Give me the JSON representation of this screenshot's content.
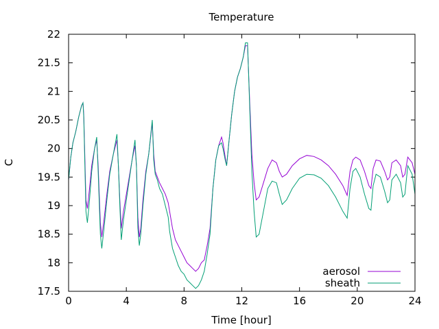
{
  "chart_data": {
    "type": "line",
    "title": "Temperature",
    "xlabel": "Time [hour]",
    "ylabel": "C",
    "xlim": [
      0,
      24
    ],
    "ylim": [
      17.5,
      22
    ],
    "xticks": [
      0,
      4,
      8,
      12,
      16,
      20,
      24
    ],
    "yticks": [
      17.5,
      18,
      18.5,
      19,
      19.5,
      20,
      20.5,
      21,
      21.5,
      22
    ],
    "grid": false,
    "legend_position": "bottom-right",
    "series": [
      {
        "name": "aerosol",
        "color": "#9400d3",
        "points": [
          [
            0.0,
            19.45
          ],
          [
            0.15,
            19.85
          ],
          [
            0.3,
            20.1
          ],
          [
            0.5,
            20.3
          ],
          [
            0.7,
            20.55
          ],
          [
            0.9,
            20.75
          ],
          [
            1.0,
            20.8
          ],
          [
            1.05,
            20.6
          ],
          [
            1.2,
            19.1
          ],
          [
            1.3,
            18.95
          ],
          [
            1.45,
            19.3
          ],
          [
            1.6,
            19.7
          ],
          [
            1.8,
            20.0
          ],
          [
            1.95,
            20.15
          ],
          [
            2.05,
            19.7
          ],
          [
            2.2,
            18.7
          ],
          [
            2.3,
            18.45
          ],
          [
            2.45,
            18.75
          ],
          [
            2.65,
            19.2
          ],
          [
            2.85,
            19.6
          ],
          [
            3.1,
            19.9
          ],
          [
            3.35,
            20.15
          ],
          [
            3.45,
            19.7
          ],
          [
            3.55,
            19.1
          ],
          [
            3.65,
            18.6
          ],
          [
            3.8,
            18.9
          ],
          [
            4.0,
            19.2
          ],
          [
            4.2,
            19.5
          ],
          [
            4.4,
            19.8
          ],
          [
            4.6,
            20.05
          ],
          [
            4.7,
            19.7
          ],
          [
            4.8,
            18.8
          ],
          [
            4.9,
            18.45
          ],
          [
            5.0,
            18.6
          ],
          [
            5.15,
            19.1
          ],
          [
            5.35,
            19.6
          ],
          [
            5.55,
            19.9
          ],
          [
            5.8,
            20.45
          ],
          [
            5.9,
            19.9
          ],
          [
            6.0,
            19.6
          ],
          [
            6.15,
            19.5
          ],
          [
            6.3,
            19.4
          ],
          [
            6.5,
            19.3
          ],
          [
            6.7,
            19.2
          ],
          [
            6.9,
            19.05
          ],
          [
            7.0,
            18.9
          ],
          [
            7.2,
            18.6
          ],
          [
            7.4,
            18.4
          ],
          [
            7.6,
            18.3
          ],
          [
            7.8,
            18.2
          ],
          [
            8.0,
            18.1
          ],
          [
            8.2,
            18.0
          ],
          [
            8.4,
            17.95
          ],
          [
            8.6,
            17.9
          ],
          [
            8.8,
            17.85
          ],
          [
            9.0,
            17.9
          ],
          [
            9.2,
            18.0
          ],
          [
            9.4,
            18.05
          ],
          [
            9.6,
            18.3
          ],
          [
            9.8,
            18.6
          ],
          [
            10.0,
            19.3
          ],
          [
            10.2,
            19.8
          ],
          [
            10.4,
            20.05
          ],
          [
            10.6,
            20.2
          ],
          [
            10.7,
            20.1
          ],
          [
            10.85,
            19.85
          ],
          [
            10.95,
            19.7
          ],
          [
            11.1,
            20.1
          ],
          [
            11.3,
            20.6
          ],
          [
            11.5,
            21.0
          ],
          [
            11.7,
            21.25
          ],
          [
            11.9,
            21.4
          ],
          [
            12.1,
            21.6
          ],
          [
            12.25,
            21.8
          ],
          [
            12.4,
            21.8
          ],
          [
            12.55,
            20.8
          ],
          [
            12.7,
            19.9
          ],
          [
            12.85,
            19.4
          ],
          [
            13.0,
            19.1
          ],
          [
            13.2,
            19.15
          ],
          [
            13.5,
            19.4
          ],
          [
            13.8,
            19.65
          ],
          [
            14.1,
            19.8
          ],
          [
            14.4,
            19.75
          ],
          [
            14.6,
            19.6
          ],
          [
            14.8,
            19.5
          ],
          [
            15.1,
            19.55
          ],
          [
            15.5,
            19.7
          ],
          [
            16.0,
            19.82
          ],
          [
            16.5,
            19.88
          ],
          [
            17.0,
            19.86
          ],
          [
            17.5,
            19.8
          ],
          [
            18.0,
            19.7
          ],
          [
            18.5,
            19.55
          ],
          [
            19.0,
            19.35
          ],
          [
            19.3,
            19.18
          ],
          [
            19.5,
            19.6
          ],
          [
            19.7,
            19.8
          ],
          [
            19.9,
            19.85
          ],
          [
            20.2,
            19.8
          ],
          [
            20.5,
            19.6
          ],
          [
            20.8,
            19.35
          ],
          [
            20.95,
            19.3
          ],
          [
            21.1,
            19.65
          ],
          [
            21.3,
            19.8
          ],
          [
            21.6,
            19.78
          ],
          [
            21.9,
            19.6
          ],
          [
            22.1,
            19.45
          ],
          [
            22.25,
            19.5
          ],
          [
            22.4,
            19.75
          ],
          [
            22.7,
            19.8
          ],
          [
            23.0,
            19.7
          ],
          [
            23.15,
            19.5
          ],
          [
            23.3,
            19.55
          ],
          [
            23.5,
            19.85
          ],
          [
            23.8,
            19.75
          ],
          [
            24.0,
            19.55
          ]
        ]
      },
      {
        "name": "sheath",
        "color": "#009e73",
        "points": [
          [
            0.0,
            19.45
          ],
          [
            0.15,
            19.85
          ],
          [
            0.3,
            20.1
          ],
          [
            0.5,
            20.3
          ],
          [
            0.7,
            20.55
          ],
          [
            0.9,
            20.75
          ],
          [
            1.0,
            20.8
          ],
          [
            1.05,
            20.55
          ],
          [
            1.2,
            18.9
          ],
          [
            1.3,
            18.7
          ],
          [
            1.45,
            19.1
          ],
          [
            1.6,
            19.6
          ],
          [
            1.8,
            20.0
          ],
          [
            1.95,
            20.2
          ],
          [
            2.05,
            19.6
          ],
          [
            2.2,
            18.5
          ],
          [
            2.3,
            18.25
          ],
          [
            2.45,
            18.6
          ],
          [
            2.65,
            19.1
          ],
          [
            2.85,
            19.55
          ],
          [
            3.1,
            19.9
          ],
          [
            3.35,
            20.25
          ],
          [
            3.45,
            19.7
          ],
          [
            3.55,
            19.0
          ],
          [
            3.65,
            18.4
          ],
          [
            3.8,
            18.75
          ],
          [
            4.0,
            19.1
          ],
          [
            4.2,
            19.45
          ],
          [
            4.4,
            19.8
          ],
          [
            4.6,
            20.15
          ],
          [
            4.7,
            19.7
          ],
          [
            4.8,
            18.6
          ],
          [
            4.9,
            18.3
          ],
          [
            5.0,
            18.5
          ],
          [
            5.15,
            19.0
          ],
          [
            5.35,
            19.55
          ],
          [
            5.55,
            19.9
          ],
          [
            5.8,
            20.5
          ],
          [
            5.9,
            19.8
          ],
          [
            6.0,
            19.55
          ],
          [
            6.15,
            19.45
          ],
          [
            6.3,
            19.3
          ],
          [
            6.5,
            19.2
          ],
          [
            6.7,
            19.0
          ],
          [
            6.9,
            18.8
          ],
          [
            7.0,
            18.55
          ],
          [
            7.2,
            18.25
          ],
          [
            7.4,
            18.1
          ],
          [
            7.6,
            17.95
          ],
          [
            7.8,
            17.85
          ],
          [
            8.0,
            17.8
          ],
          [
            8.2,
            17.7
          ],
          [
            8.4,
            17.65
          ],
          [
            8.6,
            17.6
          ],
          [
            8.8,
            17.55
          ],
          [
            9.0,
            17.6
          ],
          [
            9.2,
            17.7
          ],
          [
            9.4,
            17.85
          ],
          [
            9.6,
            18.15
          ],
          [
            9.8,
            18.5
          ],
          [
            10.0,
            19.3
          ],
          [
            10.2,
            19.8
          ],
          [
            10.4,
            20.05
          ],
          [
            10.6,
            20.1
          ],
          [
            10.7,
            20.0
          ],
          [
            10.85,
            19.8
          ],
          [
            10.95,
            19.7
          ],
          [
            11.1,
            20.1
          ],
          [
            11.3,
            20.6
          ],
          [
            11.5,
            21.0
          ],
          [
            11.7,
            21.25
          ],
          [
            11.9,
            21.4
          ],
          [
            12.1,
            21.6
          ],
          [
            12.25,
            21.85
          ],
          [
            12.4,
            21.85
          ],
          [
            12.55,
            20.7
          ],
          [
            12.7,
            19.6
          ],
          [
            12.85,
            18.9
          ],
          [
            13.0,
            18.45
          ],
          [
            13.2,
            18.5
          ],
          [
            13.5,
            18.9
          ],
          [
            13.8,
            19.3
          ],
          [
            14.1,
            19.43
          ],
          [
            14.4,
            19.4
          ],
          [
            14.6,
            19.2
          ],
          [
            14.8,
            19.02
          ],
          [
            15.1,
            19.1
          ],
          [
            15.5,
            19.3
          ],
          [
            16.0,
            19.48
          ],
          [
            16.5,
            19.55
          ],
          [
            17.0,
            19.54
          ],
          [
            17.5,
            19.48
          ],
          [
            18.0,
            19.35
          ],
          [
            18.5,
            19.15
          ],
          [
            19.0,
            18.9
          ],
          [
            19.3,
            18.78
          ],
          [
            19.5,
            19.3
          ],
          [
            19.7,
            19.6
          ],
          [
            19.9,
            19.65
          ],
          [
            20.2,
            19.5
          ],
          [
            20.5,
            19.2
          ],
          [
            20.8,
            18.95
          ],
          [
            20.95,
            18.92
          ],
          [
            21.1,
            19.35
          ],
          [
            21.3,
            19.55
          ],
          [
            21.6,
            19.5
          ],
          [
            21.9,
            19.25
          ],
          [
            22.1,
            19.05
          ],
          [
            22.25,
            19.1
          ],
          [
            22.4,
            19.45
          ],
          [
            22.7,
            19.55
          ],
          [
            23.0,
            19.4
          ],
          [
            23.15,
            19.15
          ],
          [
            23.3,
            19.2
          ],
          [
            23.5,
            19.7
          ],
          [
            23.8,
            19.55
          ],
          [
            24.0,
            19.2
          ]
        ]
      }
    ]
  }
}
